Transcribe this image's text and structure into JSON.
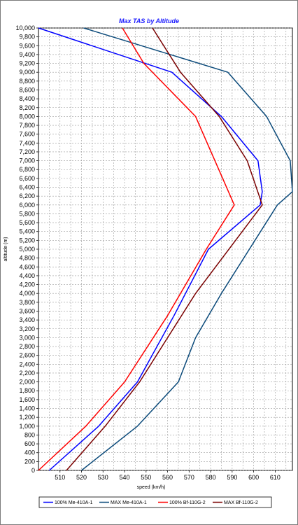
{
  "chart_data": {
    "type": "line",
    "title": "Max TAS by Altitude",
    "xlabel": "speed (km/h)",
    "ylabel": "altitude (m)",
    "xlim": [
      500,
      618
    ],
    "ylim": [
      0,
      10000
    ],
    "xticks": [
      "510",
      "520",
      "530",
      "540",
      "550",
      "560",
      "570",
      "580",
      "590",
      "600",
      "610"
    ],
    "yticks": [
      "0",
      "200",
      "400",
      "600",
      "800",
      "1,000",
      "1,200",
      "1,400",
      "1,600",
      "1,800",
      "2,000",
      "2,200",
      "2,400",
      "2,600",
      "2,800",
      "3,000",
      "3,200",
      "3,400",
      "3,600",
      "3,800",
      "4,000",
      "4,200",
      "4,400",
      "4,600",
      "4,800",
      "5,000",
      "5,200",
      "5,400",
      "5,600",
      "5,800",
      "6,000",
      "6,200",
      "6,400",
      "6,600",
      "6,800",
      "7,000",
      "7,200",
      "7,400",
      "7,600",
      "7,800",
      "8,000",
      "8,200",
      "8,400",
      "8,600",
      "8,800",
      "9,000",
      "9,200",
      "9,400",
      "9,600",
      "9,800",
      "10,000"
    ],
    "grid": true,
    "legend_position": "bottom",
    "series": [
      {
        "name": "100% Me-410A-1",
        "color": "#0000ff",
        "x": [
          505,
          528,
          546,
          563,
          579,
          603,
          604,
          602,
          585,
          562,
          500
        ],
        "y": [
          0,
          1000,
          2000,
          3500,
          5000,
          6000,
          6300,
          7000,
          8000,
          9000,
          10000
        ]
      },
      {
        "name": "MAX Me-410A-1",
        "color": "#0b4a7a",
        "x": [
          520,
          546,
          565,
          573,
          585,
          611,
          618,
          617,
          606,
          588,
          521
        ],
        "y": [
          0,
          1000,
          2000,
          3000,
          4000,
          6000,
          6300,
          7000,
          8000,
          9000,
          10000
        ]
      },
      {
        "name": "100% Bf-110G-2",
        "color": "#ff0000",
        "x": [
          500,
          522,
          540,
          560,
          578,
          591,
          573,
          563,
          549,
          539
        ],
        "y": [
          0,
          1000,
          2000,
          3500,
          5000,
          6000,
          8000,
          8500,
          9200,
          10000
        ]
      },
      {
        "name": "MAX Bf-110G-2",
        "color": "#7a0000",
        "x": [
          513,
          531,
          547,
          560,
          573,
          604,
          597,
          584,
          566,
          553
        ],
        "y": [
          0,
          1000,
          2000,
          3000,
          4000,
          6000,
          7000,
          8000,
          9000,
          10000
        ]
      }
    ]
  }
}
